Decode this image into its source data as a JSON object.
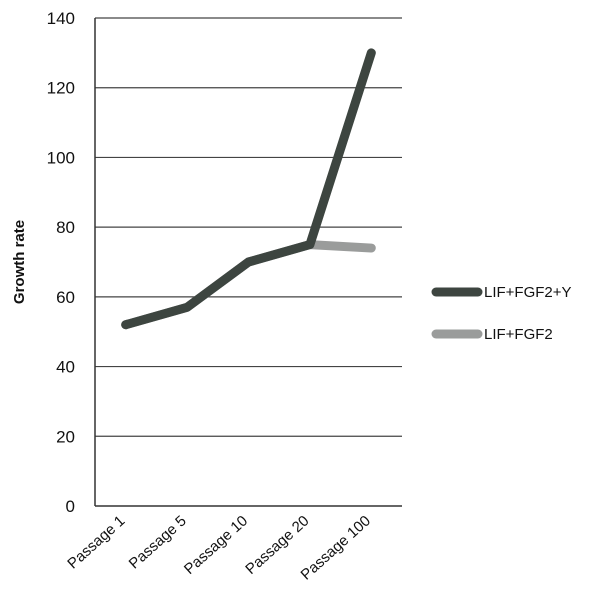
{
  "chart_data": {
    "type": "line",
    "title": "",
    "xlabel": "",
    "ylabel": "Growth rate",
    "categories": [
      "Passage 1",
      "Passage 5",
      "Passage 10",
      "Passage 20",
      "Passage 100"
    ],
    "yticks": [
      0,
      20,
      40,
      60,
      80,
      100,
      120,
      140
    ],
    "ylim": [
      0,
      140
    ],
    "grid": "horizontal",
    "legend_position": "right",
    "series": [
      {
        "name": "LIF+FGF2+Y",
        "color": "#3d4540",
        "values": [
          52,
          57,
          70,
          75,
          130
        ]
      },
      {
        "name": "LIF+FGF2",
        "color": "#9a9c9b",
        "values": [
          52,
          57,
          70,
          75,
          74
        ]
      }
    ]
  }
}
